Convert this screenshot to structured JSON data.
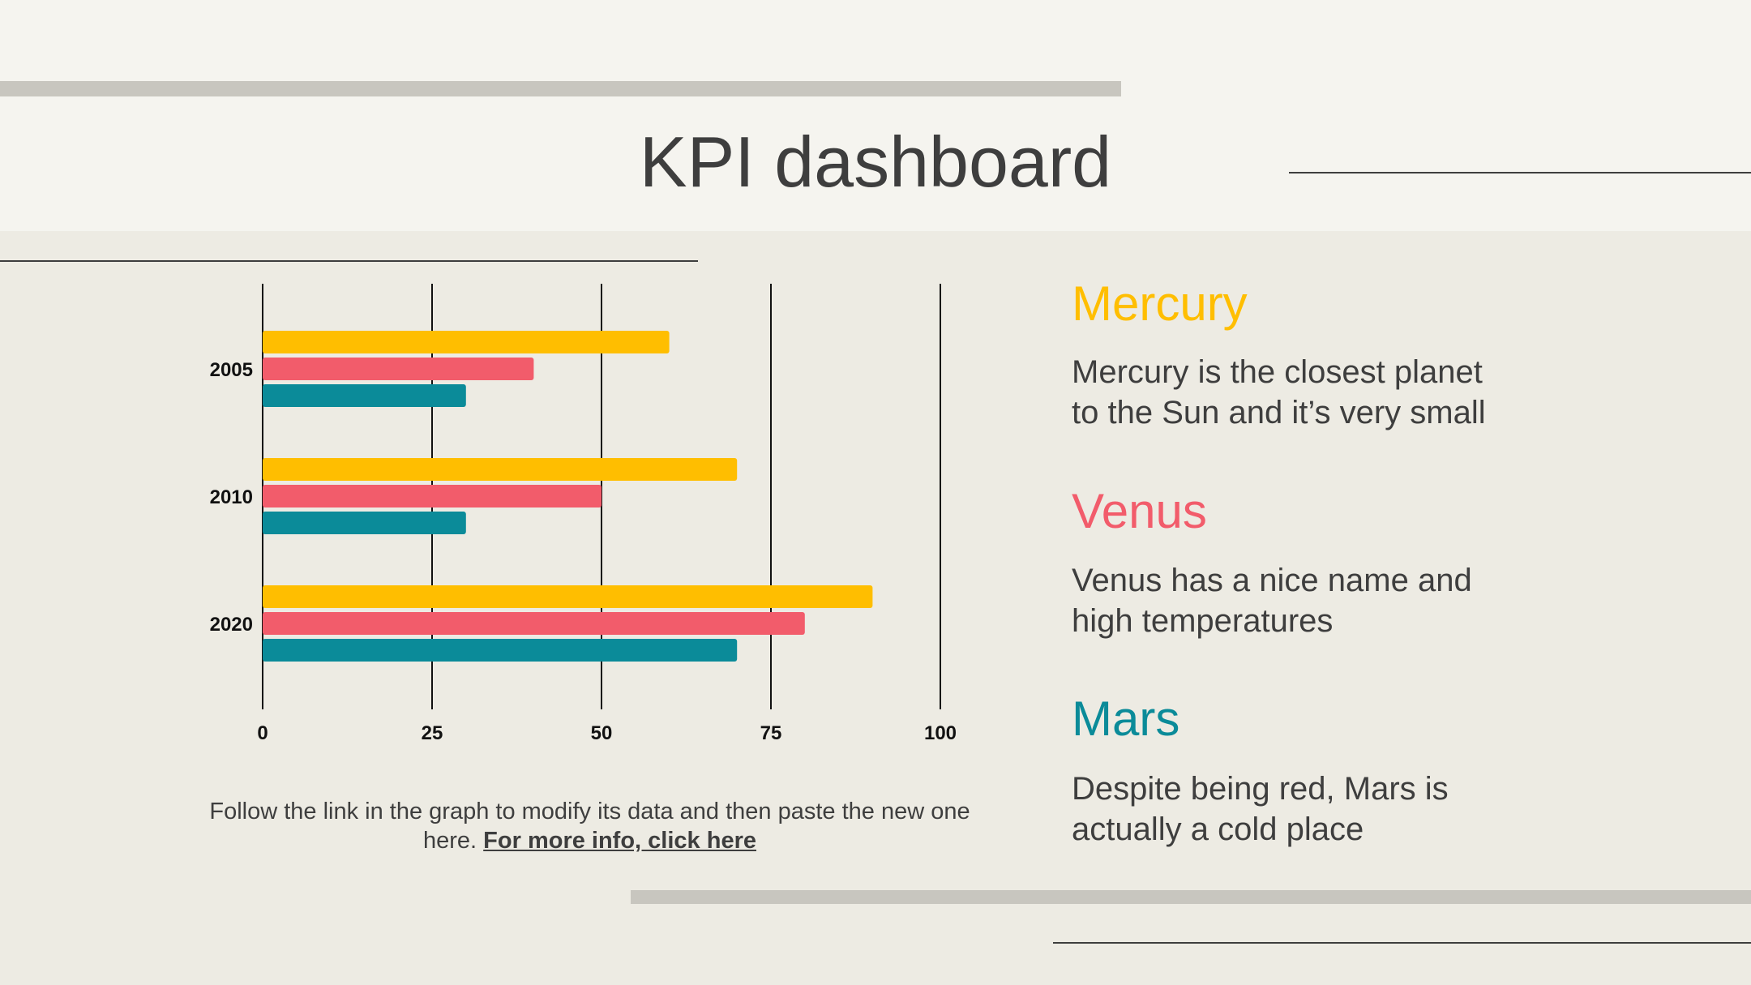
{
  "title": "KPI dashboard",
  "colors": {
    "mercury": "#ffbe00",
    "venus": "#f25c6b",
    "mars": "#0b8b99"
  },
  "legend": [
    {
      "name": "Mercury",
      "desc_lines": [
        "Mercury is the closest planet",
        "to the Sun and it’s very small"
      ]
    },
    {
      "name": "Venus",
      "desc_lines": [
        "Venus has a nice name and",
        "high temperatures"
      ]
    },
    {
      "name": "Mars",
      "desc_lines": [
        "Despite being red, Mars is",
        "actually a cold place"
      ]
    }
  ],
  "footnote": {
    "text": "Follow the link in the graph to modify its data and then paste the new one here. ",
    "link": "For more info, click here"
  },
  "chart_data": {
    "type": "bar",
    "orientation": "horizontal",
    "categories": [
      "2005",
      "2010",
      "2020"
    ],
    "series": [
      {
        "name": "Mercury",
        "color": "#ffbe00",
        "values": [
          60,
          70,
          90
        ]
      },
      {
        "name": "Venus",
        "color": "#f25c6b",
        "values": [
          40,
          50,
          80
        ]
      },
      {
        "name": "Mars",
        "color": "#0b8b99",
        "values": [
          30,
          30,
          70
        ]
      }
    ],
    "xlim": [
      0,
      100
    ],
    "xticks": [
      "0",
      "25",
      "50",
      "75",
      "100"
    ],
    "grid": true
  }
}
